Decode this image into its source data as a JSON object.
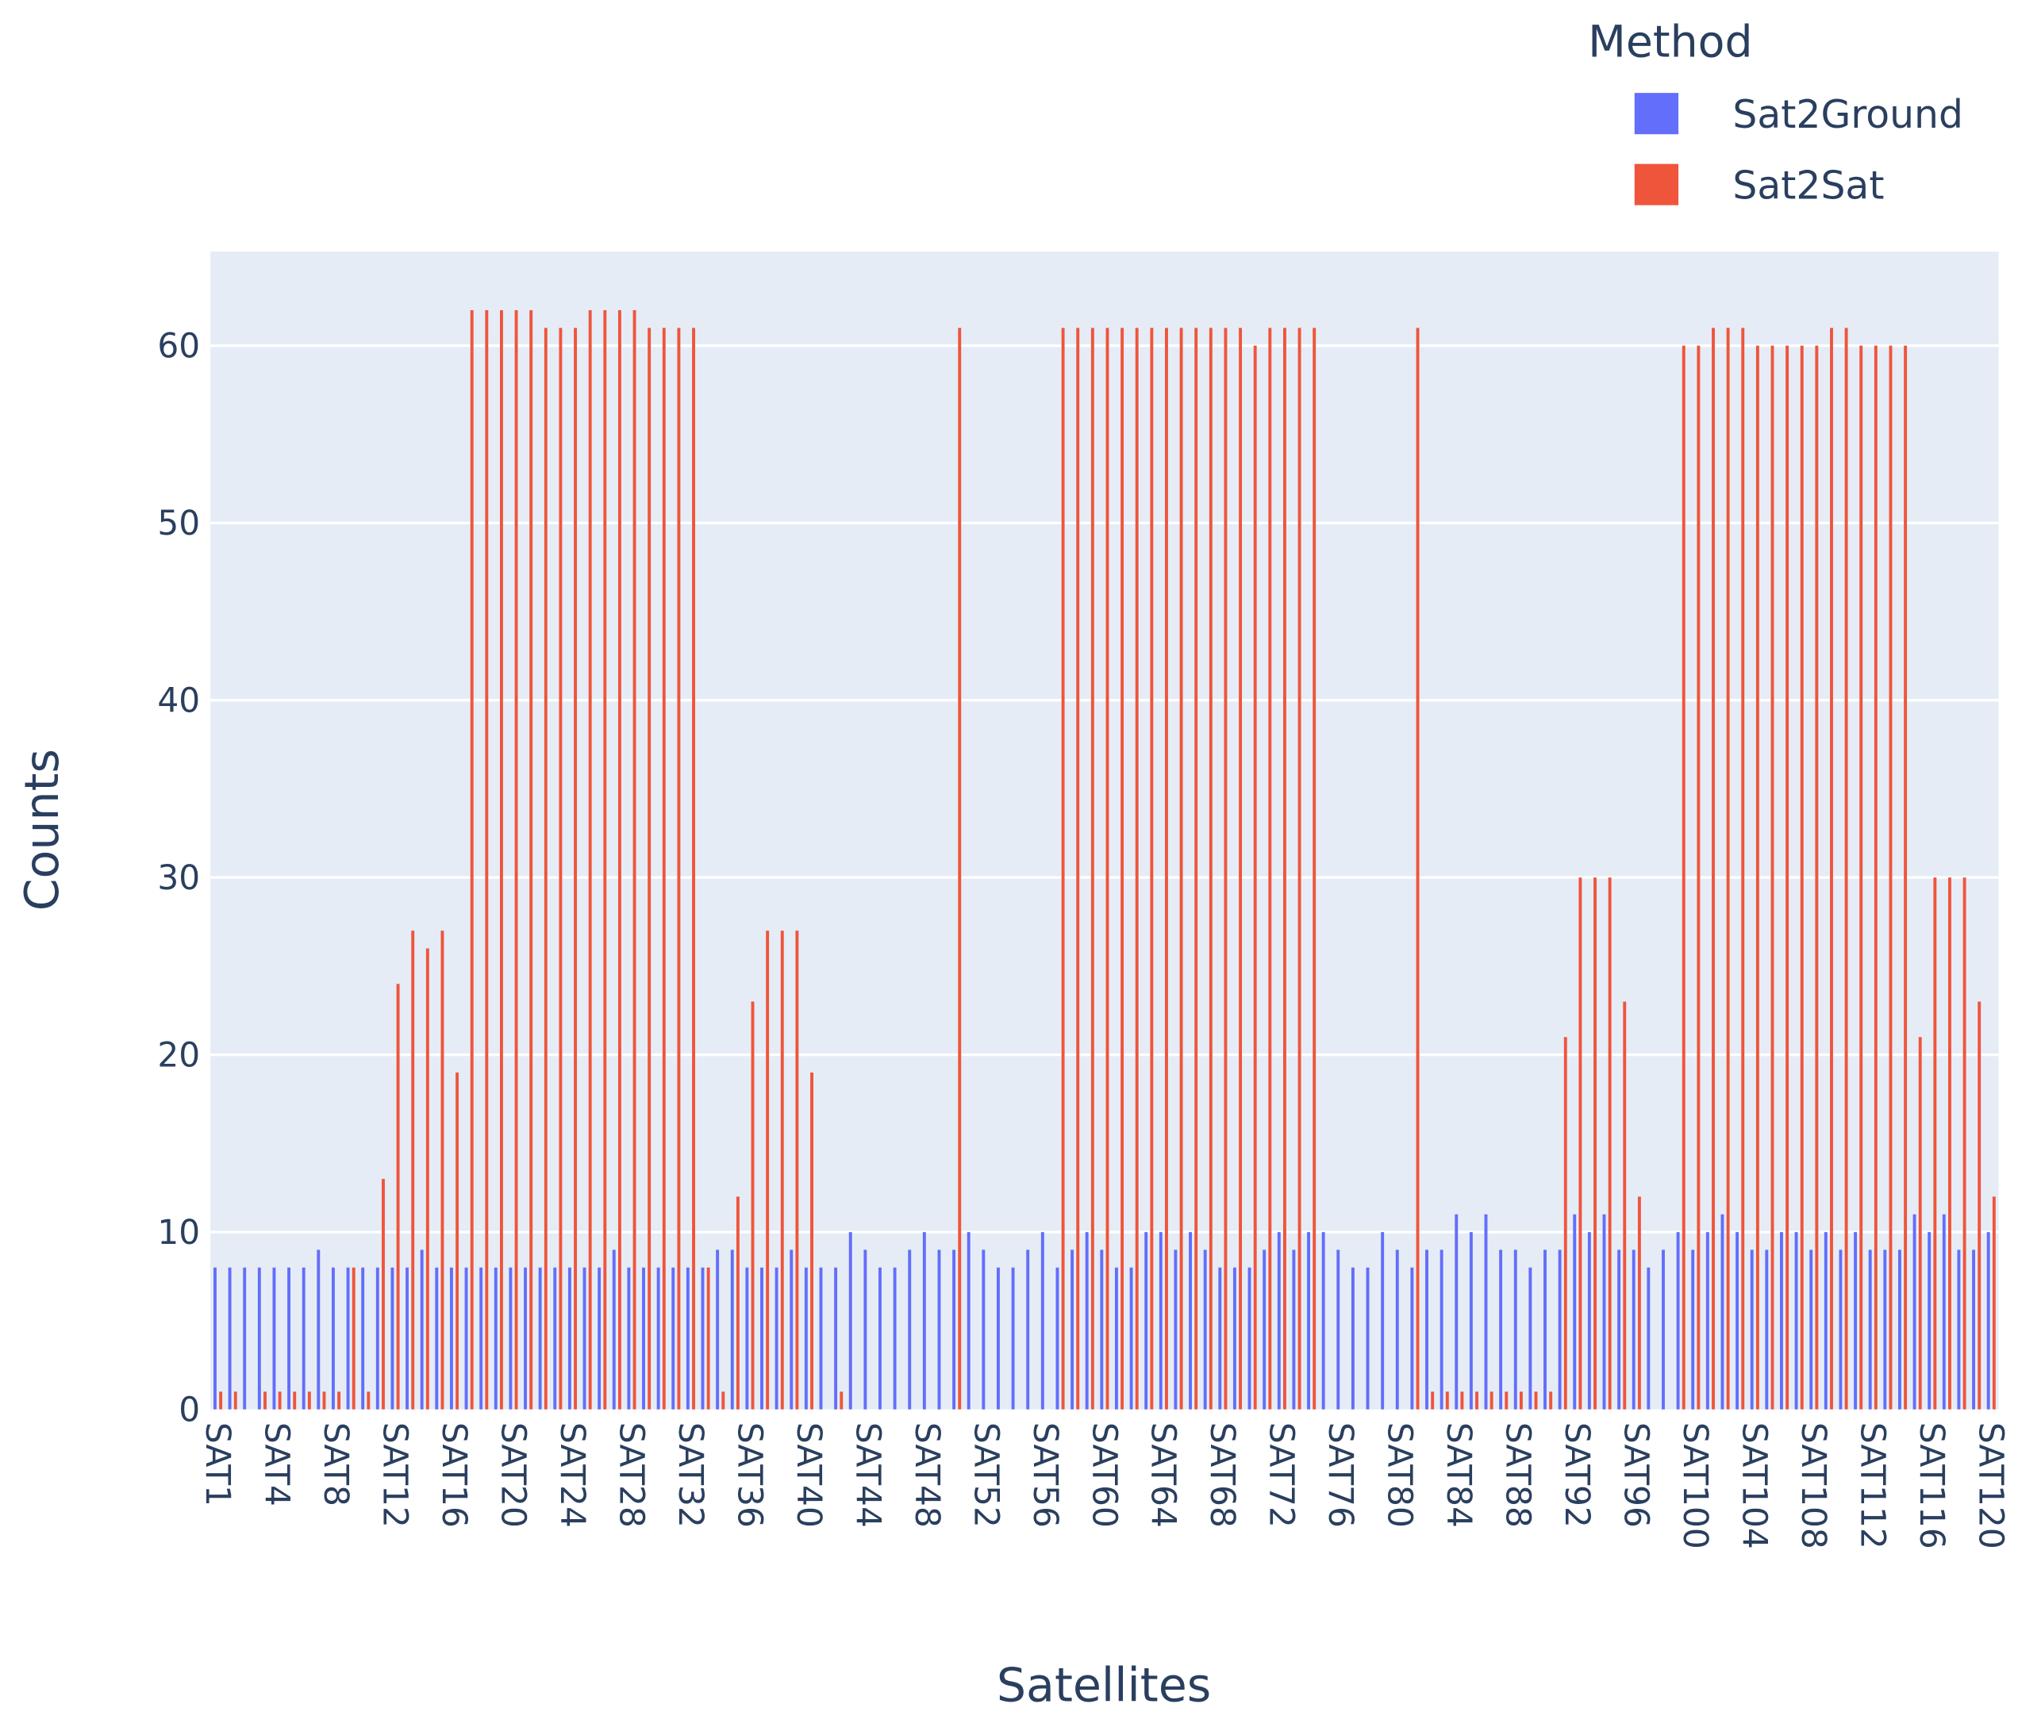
{
  "chart_data": {
    "type": "bar",
    "barmode": "group",
    "xlabel": "Satellites",
    "ylabel": "Counts",
    "legend_title": "Method",
    "legend_position": "top-right",
    "categories": [
      "SAT1",
      null,
      null,
      null,
      "SAT4",
      null,
      null,
      null,
      "SAT8",
      null,
      null,
      null,
      "SAT12",
      null,
      null,
      null,
      "SAT16",
      null,
      null,
      null,
      "SAT20",
      null,
      null,
      null,
      "SAT24",
      null,
      null,
      null,
      "SAT28",
      null,
      null,
      null,
      "SAT32",
      null,
      null,
      null,
      "SAT36",
      null,
      null,
      null,
      "SAT40",
      null,
      null,
      null,
      "SAT44",
      null,
      null,
      null,
      "SAT48",
      null,
      null,
      null,
      "SAT52",
      null,
      null,
      null,
      "SAT56",
      null,
      null,
      null,
      "SAT60",
      null,
      null,
      null,
      "SAT64",
      null,
      null,
      null,
      "SAT68",
      null,
      null,
      null,
      "SAT72",
      null,
      null,
      null,
      "SAT76",
      null,
      null,
      null,
      "SAT80",
      null,
      null,
      null,
      "SAT84",
      null,
      null,
      null,
      "SAT88",
      null,
      null,
      null,
      "SAT92",
      null,
      null,
      null,
      "SAT96",
      null,
      null,
      null,
      "SAT100",
      null,
      null,
      null,
      "SAT104",
      null,
      null,
      null,
      "SAT108",
      null,
      null,
      null,
      "SAT112",
      null,
      null,
      null,
      "SAT116",
      null,
      null,
      null,
      "SAT120"
    ],
    "series": [
      {
        "name": "Sat2Ground",
        "color": "#636efa",
        "values": [
          8,
          8,
          8,
          8,
          8,
          8,
          8,
          9,
          8,
          8,
          8,
          8,
          8,
          8,
          9,
          8,
          8,
          8,
          8,
          8,
          8,
          8,
          8,
          8,
          8,
          8,
          8,
          9,
          8,
          8,
          8,
          8,
          8,
          8,
          9,
          9,
          8,
          8,
          8,
          9,
          8,
          8,
          8,
          10,
          9,
          8,
          8,
          9,
          10,
          9,
          9,
          10,
          9,
          8,
          8,
          9,
          10,
          8,
          9,
          10,
          9,
          8,
          8,
          10,
          10,
          9,
          10,
          9,
          8,
          8,
          8,
          9,
          10,
          9,
          10,
          10,
          9,
          8,
          8,
          10,
          9,
          8,
          9,
          9,
          11,
          10,
          11,
          9,
          9,
          8,
          9,
          9,
          11,
          10,
          11,
          9,
          9,
          8,
          9,
          10,
          9,
          10,
          11,
          10,
          9,
          9,
          10,
          10,
          9,
          10,
          9,
          10,
          9,
          9,
          9,
          11,
          10,
          11,
          9,
          9,
          10
        ]
      },
      {
        "name": "Sat2Sat",
        "color": "#EF553B",
        "values": [
          1,
          1,
          0,
          1,
          1,
          1,
          1,
          1,
          1,
          8,
          1,
          13,
          24,
          27,
          26,
          27,
          19,
          62,
          62,
          62,
          62,
          62,
          61,
          61,
          61,
          62,
          62,
          62,
          62,
          61,
          61,
          61,
          61,
          8,
          1,
          12,
          23,
          27,
          27,
          27,
          19,
          0,
          1,
          0,
          0,
          0,
          0,
          0,
          0,
          0,
          61,
          0,
          0,
          0,
          0,
          0,
          0,
          61,
          61,
          61,
          61,
          61,
          61,
          61,
          61,
          61,
          61,
          61,
          61,
          61,
          60,
          61,
          61,
          61,
          61,
          0,
          0,
          0,
          0,
          0,
          0,
          61,
          1,
          1,
          1,
          1,
          1,
          1,
          1,
          1,
          1,
          21,
          30,
          30,
          30,
          23,
          12,
          0,
          0,
          60,
          60,
          61,
          61,
          61,
          60,
          60,
          60,
          60,
          60,
          61,
          61,
          60,
          60,
          60,
          60,
          21,
          30,
          30,
          30,
          23,
          12
        ]
      }
    ],
    "ylim": [
      0,
      65.3
    ],
    "yticks": [
      0,
      10,
      20,
      30,
      40,
      50,
      60
    ],
    "grid": true,
    "background": "#E5ECF6"
  }
}
